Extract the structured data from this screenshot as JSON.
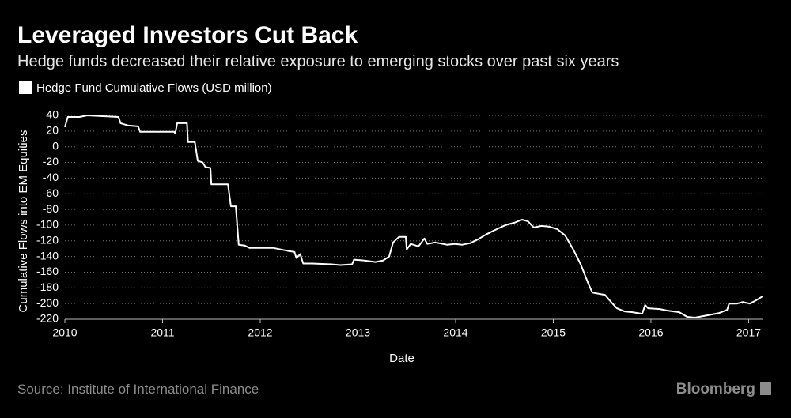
{
  "chart_data": {
    "type": "line",
    "title": "Leveraged Investors Cut Back",
    "subtitle": "Hedge funds decreased their relative exposure to emerging stocks over past six years",
    "x_label": "Date",
    "y_label": "Cumulative Flows into EM Equities",
    "source": "Source: Institute of International Finance",
    "brand": "Bloomberg",
    "legend": "top-left",
    "grid": true,
    "xlim": [
      2010,
      2017.15
    ],
    "xticks": [
      2010,
      2011,
      2012,
      2013,
      2014,
      2015,
      2016,
      2017
    ],
    "ylim": [
      -220,
      40
    ],
    "yticks": [
      40,
      20,
      0,
      -20,
      -40,
      -60,
      -80,
      -100,
      -120,
      -140,
      -160,
      -180,
      -200,
      -220
    ],
    "x": [
      2010.0,
      2010.03,
      2010.15,
      2010.23,
      2010.39,
      2010.55,
      2010.57,
      2010.65,
      2010.75,
      2010.77,
      2011.12,
      2011.13,
      2011.15,
      2011.25,
      2011.26,
      2011.33,
      2011.36,
      2011.41,
      2011.44,
      2011.49,
      2011.5,
      2011.67,
      2011.7,
      2011.75,
      2011.78,
      2011.84,
      2011.89,
      2012.13,
      2012.21,
      2012.29,
      2012.35,
      2012.37,
      2012.41,
      2012.44,
      2012.53,
      2012.73,
      2012.82,
      2012.94,
      2012.96,
      2013.06,
      2013.18,
      2013.26,
      2013.32,
      2013.36,
      2013.42,
      2013.49,
      2013.5,
      2013.54,
      2013.62,
      2013.68,
      2013.71,
      2013.79,
      2013.91,
      2013.99,
      2014.07,
      2014.15,
      2014.23,
      2014.31,
      2014.39,
      2014.51,
      2014.6,
      2014.68,
      2014.74,
      2014.8,
      2014.88,
      2014.96,
      2015.04,
      2015.12,
      2015.2,
      2015.28,
      2015.36,
      2015.4,
      2015.53,
      2015.57,
      2015.65,
      2015.73,
      2015.81,
      2015.91,
      2015.94,
      2015.97,
      2016.09,
      2016.17,
      2016.29,
      2016.37,
      2016.45,
      2016.58,
      2016.7,
      2016.78,
      2016.8,
      2016.88,
      2016.94,
      2017.01,
      2017.06,
      2017.14
    ],
    "series": [
      {
        "name": "Hedge Fund Cumulative Flows (USD million)",
        "color": "#ffffff",
        "values": [
          25,
          38,
          38,
          40,
          39,
          38,
          30,
          27,
          26,
          19,
          19,
          17,
          30,
          30,
          6,
          6,
          -18,
          -20,
          -26,
          -27,
          -48,
          -48,
          -76,
          -76,
          -125,
          -126,
          -129,
          -129,
          -131,
          -133,
          -134,
          -142,
          -137,
          -149,
          -149,
          -150,
          -151,
          -150,
          -144,
          -145,
          -147,
          -145,
          -140,
          -122,
          -115,
          -115,
          -131,
          -124,
          -127,
          -117,
          -124,
          -122,
          -125,
          -124,
          -125,
          -123,
          -118,
          -112,
          -107,
          -100,
          -97,
          -93,
          -95,
          -103,
          -101,
          -102,
          -105,
          -113,
          -130,
          -150,
          -175,
          -186,
          -189,
          -195,
          -206,
          -210,
          -211,
          -213,
          -202,
          -206,
          -207,
          -209,
          -211,
          -217,
          -218,
          -215,
          -212,
          -208,
          -200,
          -200,
          -198,
          -200,
          -197,
          -191
        ]
      }
    ]
  }
}
